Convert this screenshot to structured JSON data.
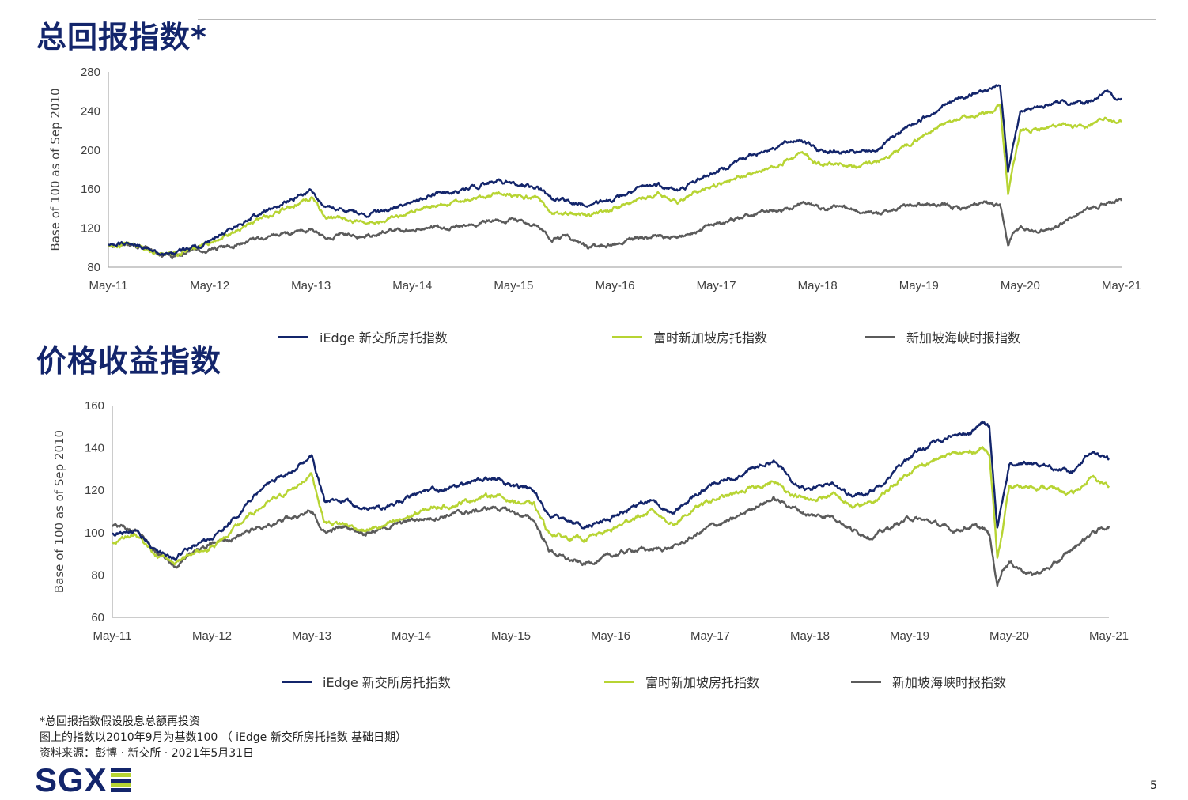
{
  "titles": {
    "total_return": "总回报指数*",
    "price_return": "价格收益指数"
  },
  "legend": [
    {
      "label": "iEdge 新交所房托指数",
      "color": "#13256b"
    },
    {
      "label": "富时新加坡房托指数",
      "color": "#b7d433"
    },
    {
      "label": "新加坡海峡时报指数",
      "color": "#5b5b5b"
    }
  ],
  "notes": [
    "*总回报指数假设股息总额再投资",
    "图上的指数以2010年9月为基数100 （ iEdge 新交所房托指数 基础日期）",
    "资料来源：彭博 · 新交所 · 2021年5月31日"
  ],
  "logo": {
    "text": "SGX",
    "bar_colors": [
      "#13256b",
      "#b7d433",
      "#13256b",
      "#b7d433",
      "#13256b"
    ]
  },
  "page_number": "5",
  "chart_data": [
    {
      "type": "line",
      "title": "总回报指数*",
      "ylabel": "Base of 100 as of Sep 2010",
      "ylim": [
        80,
        280
      ],
      "yticks": [
        "80",
        "120",
        "160",
        "200",
        "240",
        "280"
      ],
      "xticks": [
        "May-11",
        "May-12",
        "May-13",
        "May-14",
        "May-15",
        "May-16",
        "May-17",
        "May-18",
        "May-19",
        "May-20",
        "May-21"
      ],
      "x": [
        2011.37,
        2011.6,
        2011.8,
        2012.0,
        2012.2,
        2012.37,
        2012.6,
        2012.8,
        2013.0,
        2013.2,
        2013.37,
        2013.5,
        2013.7,
        2013.9,
        2014.1,
        2014.37,
        2014.6,
        2014.8,
        2015.0,
        2015.2,
        2015.37,
        2015.6,
        2015.75,
        2015.9,
        2016.1,
        2016.37,
        2016.6,
        2016.8,
        2017.0,
        2017.2,
        2017.37,
        2017.6,
        2017.8,
        2018.0,
        2018.2,
        2018.37,
        2018.6,
        2018.8,
        2019.0,
        2019.2,
        2019.37,
        2019.6,
        2019.8,
        2020.0,
        2020.1,
        2020.17,
        2020.25,
        2020.3,
        2020.37,
        2020.6,
        2020.8,
        2021.0,
        2021.2,
        2021.37
      ],
      "series": [
        {
          "name": "iEdge 新交所房托指数",
          "color": "#13256b",
          "values": [
            103,
            105,
            96,
            92,
            100,
            106,
            120,
            132,
            140,
            150,
            160,
            142,
            140,
            133,
            138,
            148,
            155,
            158,
            163,
            168,
            166,
            162,
            150,
            148,
            143,
            150,
            160,
            165,
            158,
            170,
            178,
            190,
            198,
            205,
            212,
            200,
            198,
            197,
            202,
            220,
            230,
            245,
            255,
            260,
            262,
            268,
            180,
            205,
            240,
            245,
            250,
            247,
            258,
            252
          ]
        },
        {
          "name": "富时新加坡房托指数",
          "color": "#b7d433",
          "values": [
            101,
            104,
            95,
            92,
            99,
            104,
            116,
            127,
            134,
            143,
            152,
            132,
            130,
            124,
            128,
            138,
            143,
            146,
            150,
            156,
            154,
            151,
            137,
            136,
            133,
            140,
            148,
            155,
            147,
            158,
            163,
            172,
            178,
            185,
            198,
            186,
            185,
            184,
            188,
            203,
            212,
            226,
            233,
            237,
            240,
            248,
            155,
            185,
            218,
            222,
            225,
            222,
            233,
            230
          ]
        },
        {
          "name": "新加坡海峡时报指数",
          "color": "#5b5b5b",
          "values": [
            102,
            104,
            96,
            89,
            97,
            98,
            102,
            108,
            113,
            115,
            118,
            110,
            114,
            112,
            116,
            120,
            121,
            122,
            125,
            129,
            128,
            122,
            110,
            112,
            100,
            104,
            109,
            113,
            110,
            118,
            125,
            130,
            137,
            138,
            146,
            141,
            141,
            137,
            135,
            142,
            145,
            143,
            140,
            145,
            144,
            142,
            102,
            115,
            120,
            118,
            125,
            138,
            145,
            148
          ]
        }
      ]
    },
    {
      "type": "line",
      "title": "价格收益指数",
      "ylabel": "Base of 100 as of Sep 2010",
      "ylim": [
        60,
        160
      ],
      "yticks": [
        "60",
        "80",
        "100",
        "120",
        "140",
        "160"
      ],
      "xticks": [
        "May-11",
        "May-12",
        "May-13",
        "May-14",
        "May-15",
        "May-16",
        "May-17",
        "May-18",
        "May-19",
        "May-20",
        "May-21"
      ],
      "x": [
        2011.37,
        2011.6,
        2011.8,
        2012.0,
        2012.2,
        2012.37,
        2012.6,
        2012.8,
        2013.0,
        2013.2,
        2013.37,
        2013.5,
        2013.7,
        2013.9,
        2014.1,
        2014.37,
        2014.6,
        2014.8,
        2015.0,
        2015.2,
        2015.37,
        2015.6,
        2015.75,
        2015.9,
        2016.1,
        2016.37,
        2016.6,
        2016.8,
        2017.0,
        2017.2,
        2017.37,
        2017.6,
        2017.8,
        2018.0,
        2018.2,
        2018.37,
        2018.6,
        2018.8,
        2019.0,
        2019.2,
        2019.37,
        2019.6,
        2019.8,
        2020.0,
        2020.1,
        2020.17,
        2020.25,
        2020.3,
        2020.37,
        2020.6,
        2020.8,
        2021.0,
        2021.2,
        2021.37
      ],
      "series": [
        {
          "name": "iEdge 新交所房托指数",
          "color": "#13256b",
          "values": [
            99,
            101,
            92,
            88,
            94,
            97,
            107,
            117,
            125,
            130,
            136,
            115,
            115,
            111,
            112,
            117,
            120,
            121,
            124,
            126,
            122,
            120,
            108,
            106,
            103,
            106,
            113,
            115,
            109,
            117,
            122,
            126,
            130,
            134,
            125,
            120,
            124,
            117,
            120,
            128,
            136,
            142,
            146,
            148,
            152,
            150,
            103,
            115,
            132,
            133,
            131,
            128,
            138,
            135
          ]
        },
        {
          "name": "富时新加坡房托指数",
          "color": "#b7d433",
          "values": [
            96,
            99,
            89,
            86,
            91,
            93,
            102,
            110,
            116,
            121,
            128,
            105,
            104,
            101,
            103,
            108,
            112,
            113,
            116,
            118,
            115,
            113,
            100,
            98,
            97,
            101,
            107,
            110,
            104,
            111,
            115,
            118,
            121,
            124,
            118,
            115,
            118,
            112,
            114,
            122,
            129,
            134,
            137,
            138,
            140,
            138,
            88,
            100,
            121,
            122,
            121,
            118,
            126,
            122
          ]
        },
        {
          "name": "新加坡海峡时报指数",
          "color": "#5b5b5b",
          "values": [
            103,
            102,
            91,
            84,
            92,
            95,
            98,
            102,
            105,
            108,
            110,
            100,
            103,
            100,
            102,
            106,
            107,
            109,
            110,
            112,
            110,
            106,
            92,
            88,
            85,
            89,
            92,
            92,
            93,
            98,
            103,
            106,
            112,
            116,
            112,
            108,
            108,
            101,
            98,
            103,
            107,
            105,
            101,
            103,
            102,
            99,
            75,
            83,
            86,
            80,
            84,
            92,
            100,
            103
          ]
        }
      ]
    }
  ]
}
